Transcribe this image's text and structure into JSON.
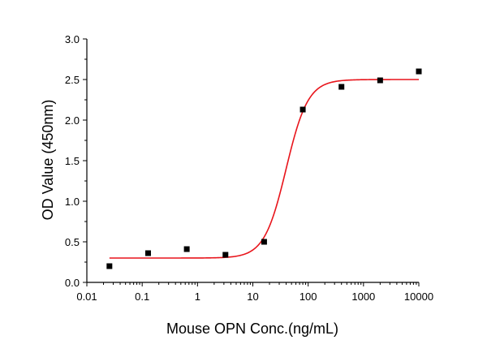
{
  "chart_data": {
    "type": "scatter",
    "xlabel": "Mouse OPN Conc.(ng/mL)",
    "ylabel": "OD Value (450nm)",
    "xscale": "log",
    "xlim": [
      0.01,
      10000
    ],
    "ylim": [
      0,
      3.0
    ],
    "x_ticks": [
      0.01,
      0.1,
      1,
      10,
      100,
      1000,
      10000
    ],
    "x_tick_labels": [
      "0.01",
      "0.1",
      "1",
      "10",
      "100",
      "1000",
      "10000"
    ],
    "y_ticks": [
      0,
      0.5,
      1.0,
      1.5,
      2.0,
      2.5,
      3.0
    ],
    "y_tick_labels": [
      "0.0",
      "0.5",
      "1.0",
      "1.5",
      "2.0",
      "2.5",
      "3.0"
    ],
    "grid": false,
    "legend": "none",
    "series": [
      {
        "kind": "points",
        "marker": "square",
        "color": "#000000",
        "x": [
          0.0256,
          0.128,
          0.64,
          3.2,
          16,
          80,
          400,
          2000,
          10000
        ],
        "y": [
          0.2,
          0.36,
          0.41,
          0.34,
          0.5,
          2.13,
          2.41,
          2.49,
          2.6
        ]
      },
      {
        "kind": "fit-curve",
        "color": "#e8141b",
        "model": "4PL",
        "x_range": [
          0.0256,
          10000
        ],
        "bottom": 0.3,
        "top": 2.5,
        "ec50": 40,
        "hill": 2.2
      }
    ]
  }
}
